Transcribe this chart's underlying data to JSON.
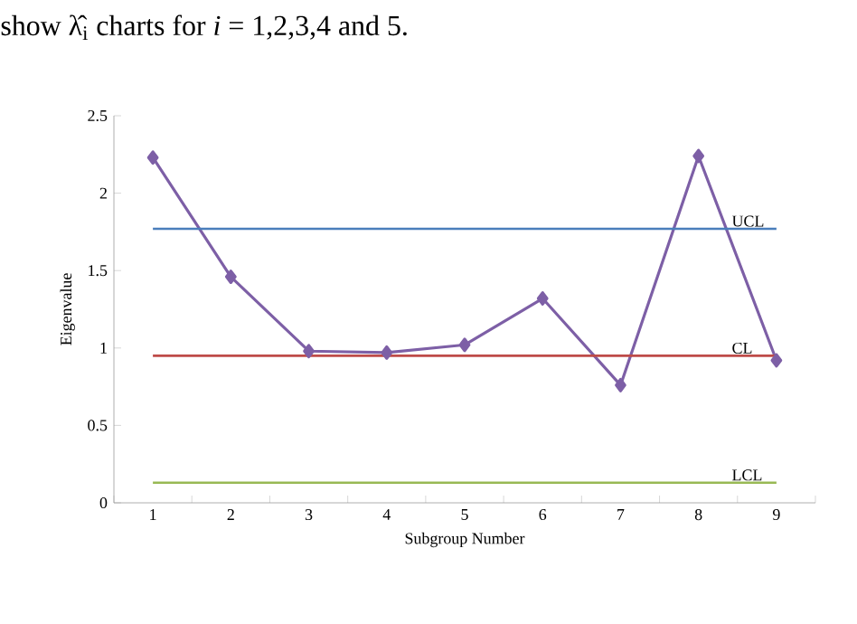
{
  "chart_data": {
    "type": "line",
    "xlabel": "Subgroup Number",
    "ylabel": "Eigenvalue",
    "categories": [
      "1",
      "2",
      "3",
      "4",
      "5",
      "6",
      "7",
      "8",
      "9"
    ],
    "series": [
      {
        "color": "#7d5fa6",
        "values": [
          2.23,
          1.46,
          0.98,
          0.97,
          1.02,
          1.32,
          0.76,
          2.24,
          0.92
        ]
      }
    ],
    "ylim": [
      0,
      2.5
    ],
    "yticks": [
      0,
      0.5,
      1,
      1.5,
      2,
      2.5
    ],
    "ref_lines": [
      {
        "axis": "y",
        "value": 1.77,
        "label": "UCL",
        "color": "#4a7ebb"
      },
      {
        "axis": "y",
        "value": 0.95,
        "label": "CL",
        "color": "#be4b48"
      },
      {
        "axis": "y",
        "value": 0.13,
        "label": "LCL",
        "color": "#98b954"
      }
    ],
    "marker": "diamond",
    "line_style": "solid",
    "grid": false,
    "annotations": [
      "show λ̂$_{i}$ charts for *i* = 1,2,3,4 and 5."
    ]
  }
}
